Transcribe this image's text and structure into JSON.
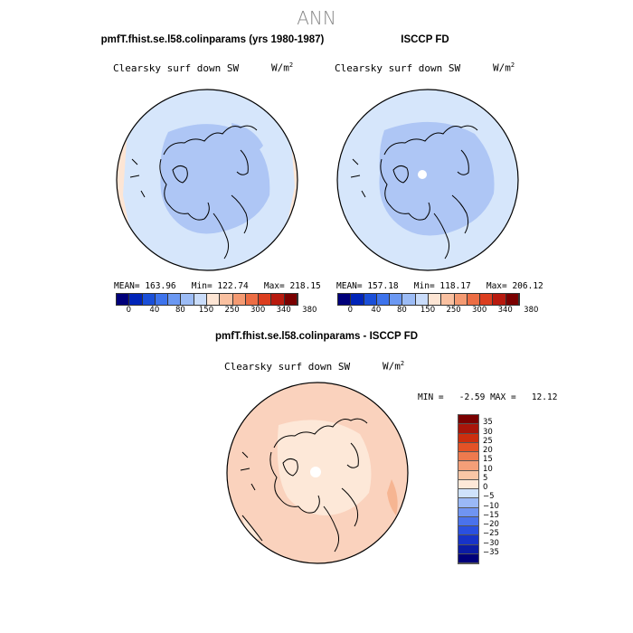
{
  "figure": {
    "title": "ANN",
    "variable": "Clearsky surf down SW",
    "unit_base": "W/m",
    "unit_exp": "2"
  },
  "panels": {
    "model": {
      "title": "pmfT.fhist.se.l58.colinparams (yrs 1980-1987)",
      "stats": "MEAN= 163.96   Min= 122.74   Max= 218.15"
    },
    "obs": {
      "title": "ISCCP FD",
      "stats": "MEAN= 157.18   Min= 118.17   Max= 206.12"
    },
    "diff": {
      "title": "pmfT.fhist.se.l58.colinparams - ISCCP FD",
      "stats": "MIN =   -2.59 MAX =   12.12"
    }
  },
  "colors": {
    "abs_colorbar": [
      "#00007a",
      "#0024b8",
      "#1a4fd8",
      "#3d73ec",
      "#6b98f2",
      "#9cbcf6",
      "#c9dcfa",
      "#fde5d4",
      "#f9c0a0",
      "#f49a72",
      "#ec6d44",
      "#dc3e1f",
      "#b81a0e",
      "#7a0000"
    ],
    "diff_colorbar": [
      "#00007a",
      "#0b1ca4",
      "#1733c8",
      "#2a50e0",
      "#4a72ec",
      "#6f94f2",
      "#9ab8f6",
      "#cfe2fb",
      "#fde8d8",
      "#f9c6a6",
      "#f49f78",
      "#ee7a4e",
      "#e45226",
      "#cc2e0e",
      "#a8150a",
      "#7a0000"
    ],
    "ocean_model": "#d6e6fb",
    "ocean_obs": "#d6e6fb",
    "polar_blue": "#aec6f5",
    "edge_peach": "#fde5d4",
    "diff_base": "#fad2bd",
    "diff_light": "#fde8d8"
  },
  "chart_data": [
    {
      "type": "colorbar",
      "name": "absolute-colorbar",
      "tick_labels": [
        "0",
        "40",
        "80",
        "150",
        "250",
        "300",
        "340",
        "380"
      ]
    },
    {
      "type": "colorbar",
      "name": "difference-colorbar",
      "levels": [
        "35",
        "30",
        "25",
        "20",
        "15",
        "10",
        "5",
        "0",
        "−5",
        "−10",
        "−15",
        "−20",
        "−25",
        "−30",
        "−35"
      ]
    }
  ]
}
